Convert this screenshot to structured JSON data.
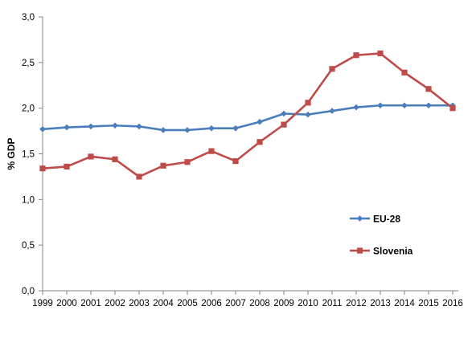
{
  "chart_data": {
    "type": "line",
    "title": "",
    "xlabel": "",
    "ylabel": "% GDP",
    "ylim": [
      0,
      3
    ],
    "yticks": [
      "0,0",
      "0,5",
      "1,0",
      "1,5",
      "2,0",
      "2,5",
      "3,0"
    ],
    "grid": false,
    "legend_position": "right-lower",
    "categories": [
      "1999",
      "2000",
      "2001",
      "2002",
      "2003",
      "2004",
      "2005",
      "2006",
      "2007",
      "2008",
      "2009",
      "2010",
      "2011",
      "2012",
      "2013",
      "2014",
      "2015",
      "2016"
    ],
    "series": [
      {
        "name": "EU-28",
        "color": "#4a7ebb",
        "marker": "diamond",
        "values": [
          1.77,
          1.79,
          1.8,
          1.81,
          1.8,
          1.76,
          1.76,
          1.78,
          1.78,
          1.85,
          1.94,
          1.93,
          1.97,
          2.01,
          2.03,
          2.03,
          2.03,
          2.03
        ]
      },
      {
        "name": "Slovenia",
        "color": "#be4b48",
        "marker": "square",
        "values": [
          1.34,
          1.36,
          1.47,
          1.44,
          1.25,
          1.37,
          1.41,
          1.53,
          1.42,
          1.63,
          1.82,
          2.06,
          2.43,
          2.58,
          2.6,
          2.39,
          2.21,
          2.0
        ]
      }
    ]
  }
}
